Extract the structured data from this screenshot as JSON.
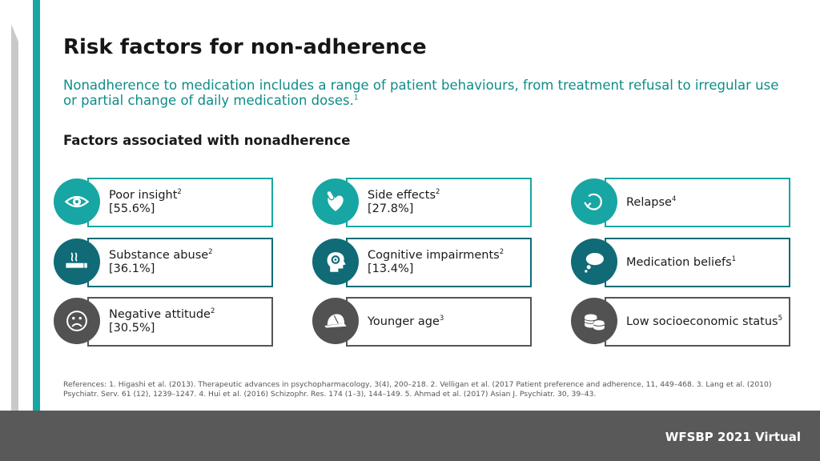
{
  "title": "Risk factors for non-adherence",
  "subtitle": {
    "text": "Nonadherence to medication includes a range of patient behaviours, from treatment refusal to irregular use or partial change of daily medication doses.",
    "sup": "1"
  },
  "section_heading": "Factors associated with nonadherence",
  "factors": [
    {
      "name": "Poor insight",
      "sup": "2",
      "value": "[55.6%]",
      "icon": "eye-icon",
      "color": "#17a6a3"
    },
    {
      "name": "Side effects",
      "sup": "2",
      "value": "[27.8%]",
      "icon": "heart-pill-icon",
      "color": "#17a6a3"
    },
    {
      "name": "Relapse",
      "sup": "4",
      "value": "",
      "icon": "cycle-arrow-icon",
      "color": "#17a6a3"
    },
    {
      "name": "Substance abuse",
      "sup": "2",
      "value": "[36.1%]",
      "icon": "cigarette-icon",
      "color": "#106b77"
    },
    {
      "name": "Cognitive impairments",
      "sup": "2",
      "value": "[13.4%]",
      "icon": "head-gear-icon",
      "color": "#106b77"
    },
    {
      "name": "Medication beliefs",
      "sup": "1",
      "value": "",
      "icon": "thought-bubble-icon",
      "color": "#106b77"
    },
    {
      "name": "Negative attitude",
      "sup": "2",
      "value": "[30.5%]",
      "icon": "sad-face-icon",
      "color": "#525252"
    },
    {
      "name": "Younger age",
      "sup": "3",
      "value": "",
      "icon": "cap-icon",
      "color": "#525252"
    },
    {
      "name": "Low socioeconomic status",
      "sup": "5",
      "value": "",
      "icon": "coins-icon",
      "color": "#525252"
    }
  ],
  "references": "References: 1. Higashi et al. (2013). Therapeutic advances in psychopharmacology, 3(4), 200–218. 2. Velligan et al. (2017 Patient preference and adherence, 11, 449–468. 3. Lang et al. (2010) Psychiatr. Serv. 61 (12), 1239–1247. 4. Hui et al. (2016) Schizophr. Res. 174 (1–3), 144–149. 5. Ahmad et al. (2017) Asian J. Psychiatr. 30, 39–43.",
  "footer": "WFSBP 2021 Virtual"
}
